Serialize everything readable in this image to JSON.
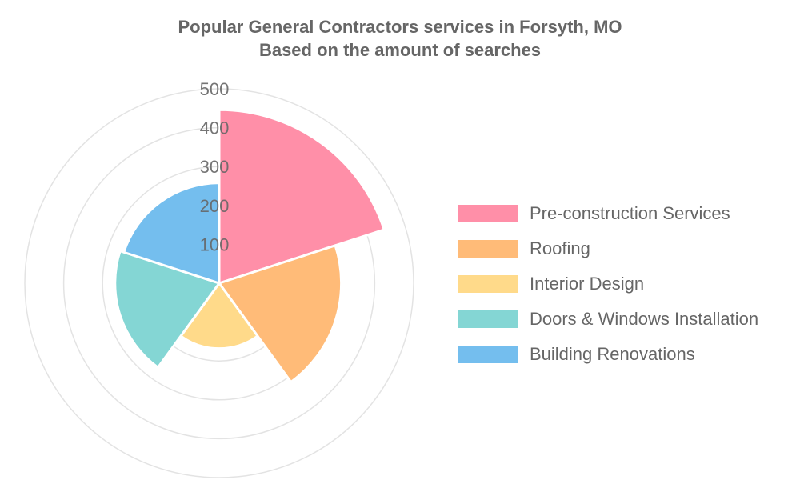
{
  "chart_data": {
    "type": "polarArea",
    "title": "Popular General Contractors services in Forsyth, MO",
    "subtitle": "Based on the amount of searches",
    "categories": [
      "Pre-construction Services",
      "Roofing",
      "Interior Design",
      "Doors & Windows Installation",
      "Building Renovations"
    ],
    "values": [
      446,
      314,
      168,
      268,
      258
    ],
    "colors": [
      "#ff8fa8",
      "#ffbb78",
      "#ffda8a",
      "#84d6d4",
      "#74beee"
    ],
    "r_ticks": [
      "100",
      "200",
      "300",
      "400",
      "500"
    ],
    "rlim": [
      0,
      500
    ],
    "grid": true,
    "legend_position": "right"
  }
}
